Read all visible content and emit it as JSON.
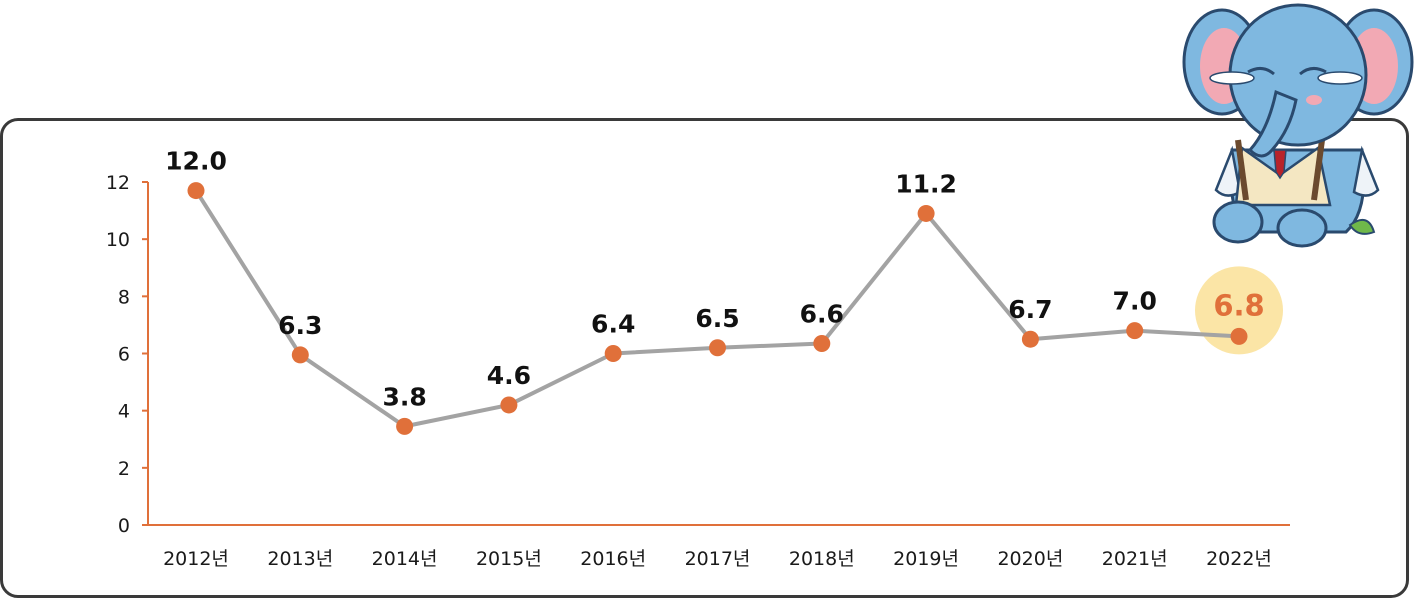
{
  "chart_data": {
    "type": "line",
    "title": "",
    "xlabel": "",
    "ylabel": "",
    "categories": [
      "2012년",
      "2013년",
      "2014년",
      "2015년",
      "2016년",
      "2017년",
      "2018년",
      "2019년",
      "2020년",
      "2021년",
      "2022년"
    ],
    "values": [
      12.0,
      6.3,
      3.8,
      4.6,
      6.4,
      6.5,
      6.6,
      11.2,
      6.7,
      7.0,
      6.8
    ],
    "value_labels": [
      "12.0",
      "6.3",
      "3.8",
      "4.6",
      "6.4",
      "6.5",
      "6.6",
      "11.2",
      "6.7",
      "7.0",
      "6.8"
    ],
    "plotted_values": [
      11.7,
      5.95,
      3.45,
      4.2,
      6.0,
      6.2,
      6.35,
      10.9,
      6.5,
      6.8,
      6.6
    ],
    "ylim": [
      0,
      12
    ],
    "yticks": [
      0,
      2,
      4,
      6,
      8,
      10,
      12
    ],
    "grid": false,
    "highlight_index": 10,
    "colors": {
      "line": "#a3a3a3",
      "marker": "#e0703a",
      "axis": "#e0703a",
      "highlight_bg": "#fbe5a6",
      "highlight_text": "#e0703a",
      "frame": "#3a3a3a"
    }
  },
  "mascot": {
    "name": "crying-elephant-mascot"
  }
}
